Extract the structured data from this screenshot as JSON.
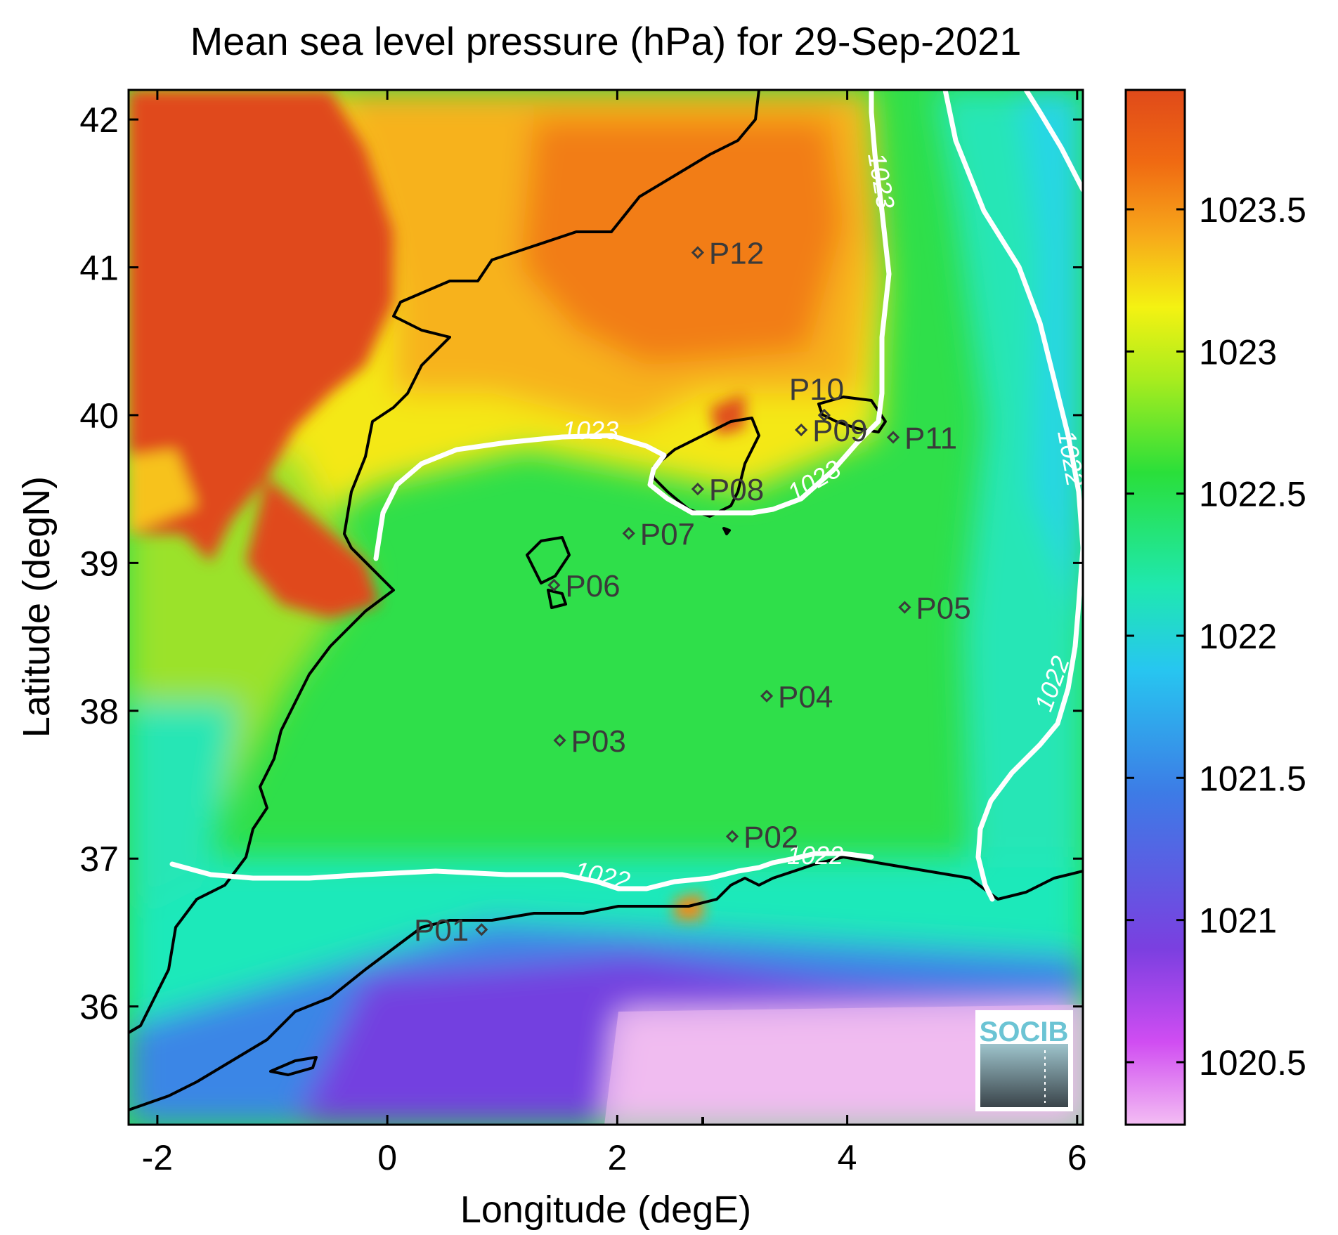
{
  "title": "Mean sea level pressure (hPa) for 29-Sep-2021",
  "x_axis": {
    "label": "Longitude (degE)",
    "ticks": [
      -2,
      0,
      2,
      4,
      6
    ],
    "tick_labels": [
      "-2",
      "0",
      "2",
      "4",
      "6"
    ],
    "range": [
      -2.25,
      6.05
    ]
  },
  "y_axis": {
    "label": "Latitude (degN)",
    "ticks": [
      36,
      37,
      38,
      39,
      40,
      41,
      42
    ],
    "tick_labels": [
      "36",
      "37",
      "38",
      "39",
      "40",
      "41",
      "42"
    ],
    "range": [
      35.2,
      42.2
    ]
  },
  "colorbar": {
    "range": [
      1020.28,
      1023.92
    ],
    "ticks": [
      1020.5,
      1021,
      1021.5,
      1022,
      1022.5,
      1023,
      1023.5
    ],
    "tick_labels": [
      "1020.5",
      "1021",
      "1021.5",
      "1022",
      "1022.5",
      "1023",
      "1023.5"
    ],
    "colormap": [
      "#f3bdf3",
      "#d04df2",
      "#7b3fe0",
      "#3d7be6",
      "#27c6f0",
      "#1fe8b0",
      "#2adf3a",
      "#a8ec1e",
      "#f4f212",
      "#f7a81a",
      "#f06a12",
      "#e04a1a"
    ]
  },
  "contours": [
    {
      "level": "1023",
      "labels": [
        "1023",
        "1023",
        "1023"
      ]
    },
    {
      "level": "1022",
      "labels": [
        "1022",
        "1022",
        "1022",
        "1022"
      ]
    }
  ],
  "points": [
    {
      "name": "P01",
      "lon": 0.82,
      "lat": 36.52
    },
    {
      "name": "P02",
      "lon": 3.0,
      "lat": 37.15
    },
    {
      "name": "P03",
      "lon": 1.5,
      "lat": 37.8
    },
    {
      "name": "P04",
      "lon": 3.3,
      "lat": 38.1
    },
    {
      "name": "P05",
      "lon": 4.5,
      "lat": 38.7
    },
    {
      "name": "P06",
      "lon": 1.45,
      "lat": 38.85
    },
    {
      "name": "P07",
      "lon": 2.1,
      "lat": 39.2
    },
    {
      "name": "P08",
      "lon": 2.7,
      "lat": 39.5
    },
    {
      "name": "P09",
      "lon": 3.6,
      "lat": 39.9
    },
    {
      "name": "P10",
      "lon": 3.8,
      "lat": 40.0
    },
    {
      "name": "P11",
      "lon": 4.4,
      "lat": 39.85
    },
    {
      "name": "P12",
      "lon": 2.7,
      "lat": 41.1
    }
  ],
  "logo": {
    "text": "SOCIB"
  }
}
